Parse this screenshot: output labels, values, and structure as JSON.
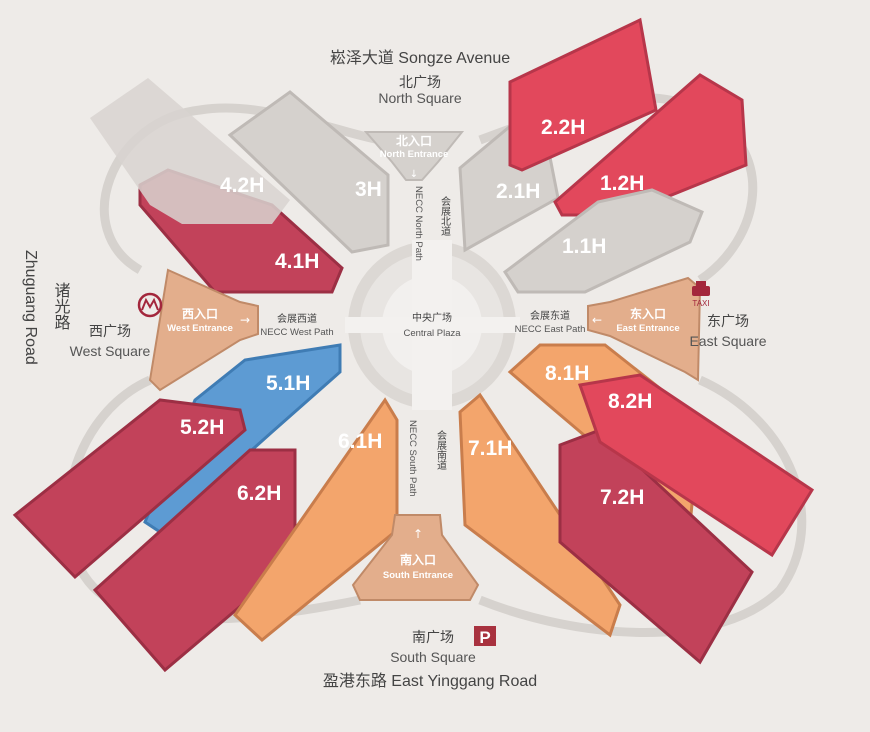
{
  "roads": {
    "north": "崧泽大道 Songze Avenue",
    "south": "盈港东路 East Yinggang Road",
    "west_cn": "诸光路",
    "west_en": "Zhuguang Road"
  },
  "squares": {
    "north": {
      "cn": "北广场",
      "en": "North Square"
    },
    "south": {
      "cn": "南广场",
      "en": "South Square"
    },
    "west": {
      "cn": "西广场",
      "en": "West Square"
    },
    "east": {
      "cn": "东广场",
      "en": "East Square"
    },
    "central": {
      "cn": "中央广场",
      "en": "Central Plaza"
    }
  },
  "entrances": {
    "north": {
      "cn": "北入口",
      "en": "North Entrance"
    },
    "south": {
      "cn": "南入口",
      "en": "South Entrance"
    },
    "west": {
      "cn": "西入口",
      "en": "West Entrance"
    },
    "east": {
      "cn": "东入口",
      "en": "East Entrance"
    }
  },
  "paths": {
    "north": {
      "cn": "会展北道",
      "en": "NECC North Path"
    },
    "south": {
      "cn": "会展南道",
      "en": "NECC South Path"
    },
    "west": {
      "cn": "会展西道",
      "en": "NECC West Path"
    },
    "east": {
      "cn": "会展东道",
      "en": "NECC East Path"
    }
  },
  "halls": {
    "h1_1": "1.1H",
    "h1_2": "1.2H",
    "h2_1": "2.1H",
    "h2_2": "2.2H",
    "h3": "3H",
    "h4_1": "4.1H",
    "h4_2": "4.2H",
    "h5_1": "5.1H",
    "h5_2": "5.2H",
    "h6_1": "6.1H",
    "h6_2": "6.2H",
    "h7_1": "7.1H",
    "h7_2": "7.2H",
    "h8_1": "8.1H",
    "h8_2": "8.2H"
  },
  "icons": {
    "metro": "metro-icon",
    "taxi": "taxi-icon",
    "parking": "parking-icon"
  },
  "taxi_label": "TAXI",
  "parking_label": "P",
  "colors": {
    "gray": "#d5d1cd",
    "crimson": "#c2425a",
    "red": "#e2485c",
    "blue": "#5d9bd3",
    "orange": "#f3a56c",
    "entrance": "#e3ae8c"
  }
}
